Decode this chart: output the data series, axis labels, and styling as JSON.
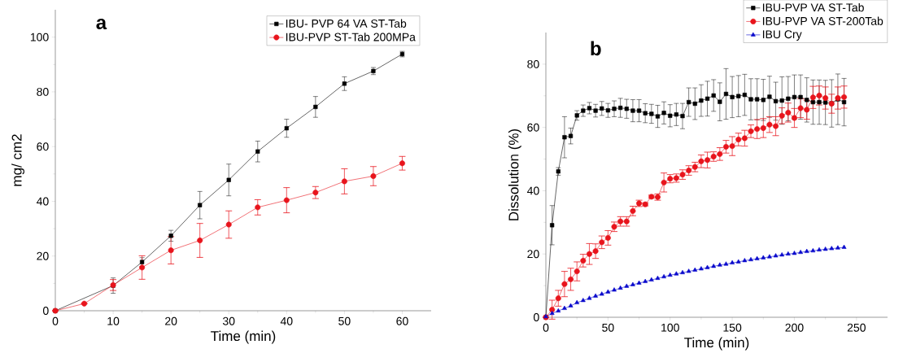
{
  "chart_data": [
    {
      "type": "line",
      "annotations": [
        "a"
      ],
      "xlabel": "Time (min)",
      "ylabel": "mg/ cm2",
      "xlim": [
        0,
        65
      ],
      "ylim": [
        0,
        110
      ],
      "xticks": [
        0,
        10,
        20,
        30,
        40,
        50,
        60
      ],
      "yticks": [
        0,
        20,
        40,
        60,
        80,
        100
      ],
      "legend": "top right",
      "series": [
        {
          "name": "IBU- PVP 64 VA  ST-Tab",
          "color": "#000000",
          "marker": "square",
          "x": [
            0,
            10,
            15,
            20,
            25,
            30,
            35,
            40,
            45,
            50,
            55,
            60
          ],
          "values": [
            0,
            9.2,
            17.8,
            27.4,
            38.6,
            47.8,
            58.2,
            66.7,
            74.5,
            83,
            87.6,
            93.8
          ],
          "errors": [
            null,
            2.8,
            1.6,
            2,
            5,
            5.8,
            3.8,
            3.3,
            3.8,
            2.5,
            1.3,
            1
          ]
        },
        {
          "name": "IBU-PVP ST-Tab 200MPa",
          "color": "#e8141c",
          "marker": "circle",
          "x": [
            0,
            5,
            10,
            15,
            20,
            25,
            30,
            35,
            40,
            45,
            50,
            55,
            60
          ],
          "values": [
            0,
            2.6,
            9.4,
            15.8,
            22.1,
            25.7,
            31.5,
            37.8,
            40.4,
            43.2,
            47.3,
            49.2,
            53.9
          ],
          "errors": [
            null,
            null,
            2,
            4.3,
            5,
            6.2,
            5,
            2.8,
            4.6,
            2.2,
            4.6,
            3.5,
            2.5
          ]
        }
      ]
    },
    {
      "type": "line",
      "annotations": [
        "b"
      ],
      "xlabel": "Time (min)",
      "ylabel": "Dissolution (%)",
      "xlim": [
        0,
        275
      ],
      "ylim": [
        0,
        90
      ],
      "xticks": [
        0,
        50,
        100,
        150,
        200,
        250
      ],
      "yticks": [
        0,
        20,
        40,
        60,
        80
      ],
      "legend": "top right",
      "series": [
        {
          "name": "IBU-PVP VA  ST-Tab",
          "color": "#000000",
          "marker": "square",
          "x": [
            0,
            5,
            10,
            15,
            20,
            25,
            30,
            35,
            40,
            45,
            50,
            55,
            60,
            65,
            70,
            75,
            80,
            85,
            90,
            95,
            100,
            105,
            110,
            115,
            120,
            125,
            130,
            135,
            140,
            145,
            150,
            155,
            160,
            165,
            170,
            175,
            180,
            185,
            190,
            195,
            200,
            205,
            210,
            215,
            220,
            225,
            230,
            235,
            240
          ],
          "values": [
            0,
            29.1,
            46.1,
            56.9,
            57.3,
            63.8,
            65.3,
            66.1,
            65.3,
            66.0,
            65.4,
            65.9,
            66.2,
            65.9,
            65.3,
            65.3,
            64.5,
            64.3,
            63.5,
            64.6,
            63.7,
            64.1,
            63.6,
            68.0,
            67.5,
            68.5,
            69.1,
            70.1,
            68.1,
            70.6,
            69.6,
            69.9,
            70.3,
            68.9,
            68.9,
            68.7,
            69.7,
            68.3,
            68.5,
            69.1,
            69.6,
            69.6,
            68.7,
            68.0,
            68.0,
            67.9,
            67.6,
            68.9,
            68.0
          ],
          "errors": [
            null,
            6.2,
            1.2,
            6.5,
            2.5,
            1.5,
            1.8,
            1.8,
            2.0,
            2.2,
            2.2,
            2.5,
            3.0,
            3.0,
            3.5,
            3.5,
            3.0,
            3.0,
            3.5,
            3.5,
            3.5,
            3.5,
            4.0,
            4.5,
            5.0,
            5.0,
            5.5,
            5.0,
            6.0,
            8.0,
            6.5,
            6.5,
            6.5,
            6.5,
            6.5,
            6.5,
            6.5,
            6.0,
            7.5,
            7.0,
            7.0,
            7.0,
            7.0,
            7.0,
            7.0,
            7.0,
            7.5,
            8.0,
            7.5
          ]
        },
        {
          "name": "IBU-PVP VA ST-200Tab",
          "color": "#e8141c",
          "marker": "circle",
          "x": [
            0,
            5,
            10,
            15,
            20,
            25,
            30,
            35,
            40,
            45,
            50,
            55,
            60,
            65,
            70,
            75,
            80,
            85,
            90,
            95,
            100,
            105,
            110,
            115,
            120,
            125,
            130,
            135,
            140,
            145,
            150,
            155,
            160,
            165,
            170,
            175,
            180,
            185,
            190,
            195,
            200,
            205,
            210,
            215,
            220,
            225,
            230,
            235,
            240
          ],
          "values": [
            0,
            2.4,
            6.0,
            10.5,
            12.0,
            14.5,
            17.9,
            20.0,
            20.9,
            23.7,
            25.1,
            28.6,
            30.3,
            30.3,
            33.6,
            36.0,
            35.7,
            38.1,
            38.0,
            42.6,
            43.8,
            44.0,
            45.1,
            46.4,
            47.5,
            49.3,
            49.7,
            50.8,
            51.6,
            53.9,
            54.1,
            56.2,
            56.6,
            58.8,
            59.5,
            59.8,
            60.9,
            60.4,
            63.7,
            64.7,
            63.0,
            66.1,
            65.6,
            69.5,
            70.1,
            69.3,
            67.5,
            69.3,
            69.6
          ],
          "errors": [
            null,
            3.0,
            2.5,
            4.0,
            3.5,
            3.0,
            2.0,
            3.3,
            2.3,
            2.0,
            2.3,
            1.5,
            1.5,
            1.5,
            1.5,
            1.0,
            0.5,
            0.5,
            1.0,
            3.0,
            1.3,
            1.3,
            1.5,
            1.5,
            1.5,
            2.0,
            2.5,
            1.5,
            2.0,
            2.0,
            3.0,
            2.0,
            2.5,
            2.0,
            3.0,
            3.0,
            2.5,
            3.0,
            2.5,
            3.0,
            3.0,
            3.0,
            3.0,
            3.5,
            3.0,
            3.5,
            3.0,
            3.5,
            3.5
          ]
        },
        {
          "name": "IBU Cry",
          "color": "#0a0acc",
          "marker": "triangle",
          "x": [
            0,
            5,
            10,
            15,
            20,
            25,
            30,
            35,
            40,
            45,
            50,
            55,
            60,
            65,
            70,
            75,
            80,
            85,
            90,
            95,
            100,
            105,
            110,
            115,
            120,
            125,
            130,
            135,
            140,
            145,
            150,
            155,
            160,
            165,
            170,
            175,
            180,
            185,
            190,
            195,
            200,
            205,
            210,
            215,
            220,
            225,
            230,
            235,
            240
          ],
          "values": [
            0.2,
            1.2,
            2.0,
            2.8,
            3.6,
            4.6,
            5.3,
            6.0,
            6.7,
            7.3,
            8.0,
            8.6,
            9.2,
            9.8,
            10.3,
            10.8,
            11.3,
            11.8,
            12.3,
            12.8,
            13.3,
            13.7,
            14.1,
            14.5,
            14.9,
            15.3,
            15.7,
            16.1,
            16.5,
            16.8,
            17.2,
            17.5,
            17.9,
            18.2,
            18.5,
            18.8,
            19.1,
            19.4,
            19.7,
            20.0,
            20.2,
            20.5,
            20.8,
            21.0,
            21.3,
            21.5,
            21.7,
            21.9,
            22.1
          ]
        }
      ]
    }
  ]
}
